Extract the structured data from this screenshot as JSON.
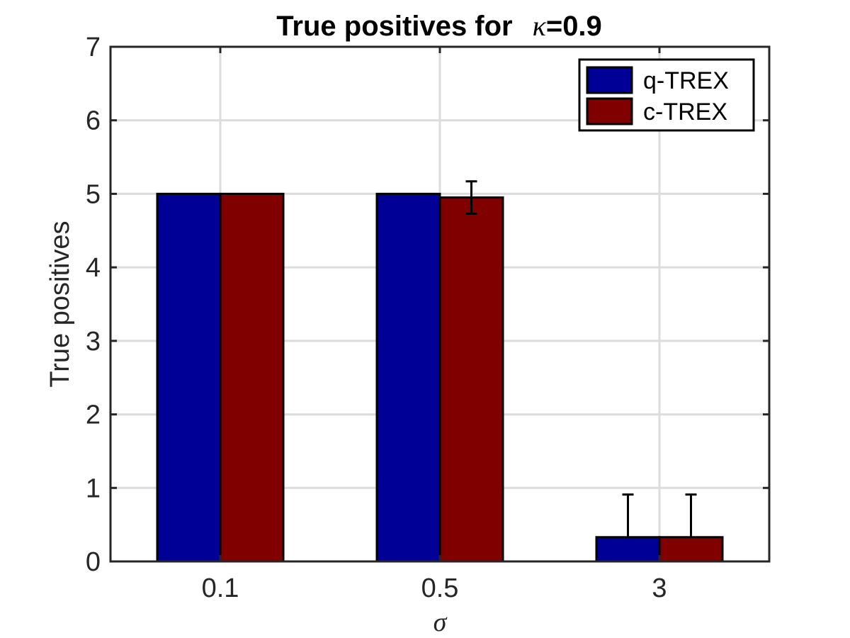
{
  "chart_data": {
    "type": "bar",
    "title_prefix": "True positives for",
    "title_symbol": "κ",
    "title_suffix": "=0.9",
    "xlabel": "σ",
    "ylabel": "True positives",
    "categories": [
      "0.1",
      "0.5",
      "3"
    ],
    "ylim": [
      0,
      7
    ],
    "yticks": [
      "0",
      "1",
      "2",
      "3",
      "4",
      "5",
      "6",
      "7"
    ],
    "grid": true,
    "legend_position": "top-right",
    "series": [
      {
        "name": "q-TREX",
        "color": "#000096",
        "values": [
          5.0,
          5.0,
          0.33
        ],
        "error_plus": [
          0,
          0,
          0.58
        ],
        "error_minus": [
          0,
          0,
          0
        ]
      },
      {
        "name": "c-TREX",
        "color": "#800000",
        "values": [
          5.0,
          4.95,
          0.33
        ],
        "error_plus": [
          0,
          0.22,
          0.58
        ],
        "error_minus": [
          0,
          0.22,
          0
        ]
      }
    ]
  }
}
